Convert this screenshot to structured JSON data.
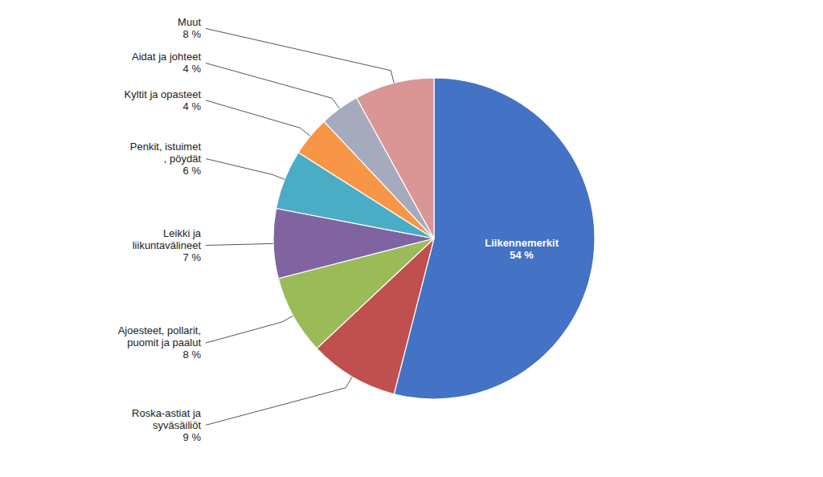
{
  "chart_data": {
    "type": "pie",
    "categories": [
      "Liikennemerkit",
      "Roska-astiat ja\nsyväsäiliöt",
      "Ajoesteet, pollarit,\npuomit ja paalut",
      "Leikki ja\nliikuntavälineet",
      "Penkit, istuimet\n, pöydät",
      "Kyltit ja opasteet",
      "Aidat ja johteet",
      "Muut"
    ],
    "values": [
      54,
      9,
      8,
      7,
      6,
      4,
      4,
      8
    ],
    "value_labels": [
      "54 %",
      "9 %",
      "8 %",
      "7 %",
      "6 %",
      "4 %",
      "4 %",
      "8 %"
    ],
    "colors": [
      "#4472C4",
      "#C0504D",
      "#9BBB59",
      "#8064A2",
      "#4BACC6",
      "#F79646",
      "#A5AABD",
      "#D99694"
    ],
    "data_labels": true
  }
}
